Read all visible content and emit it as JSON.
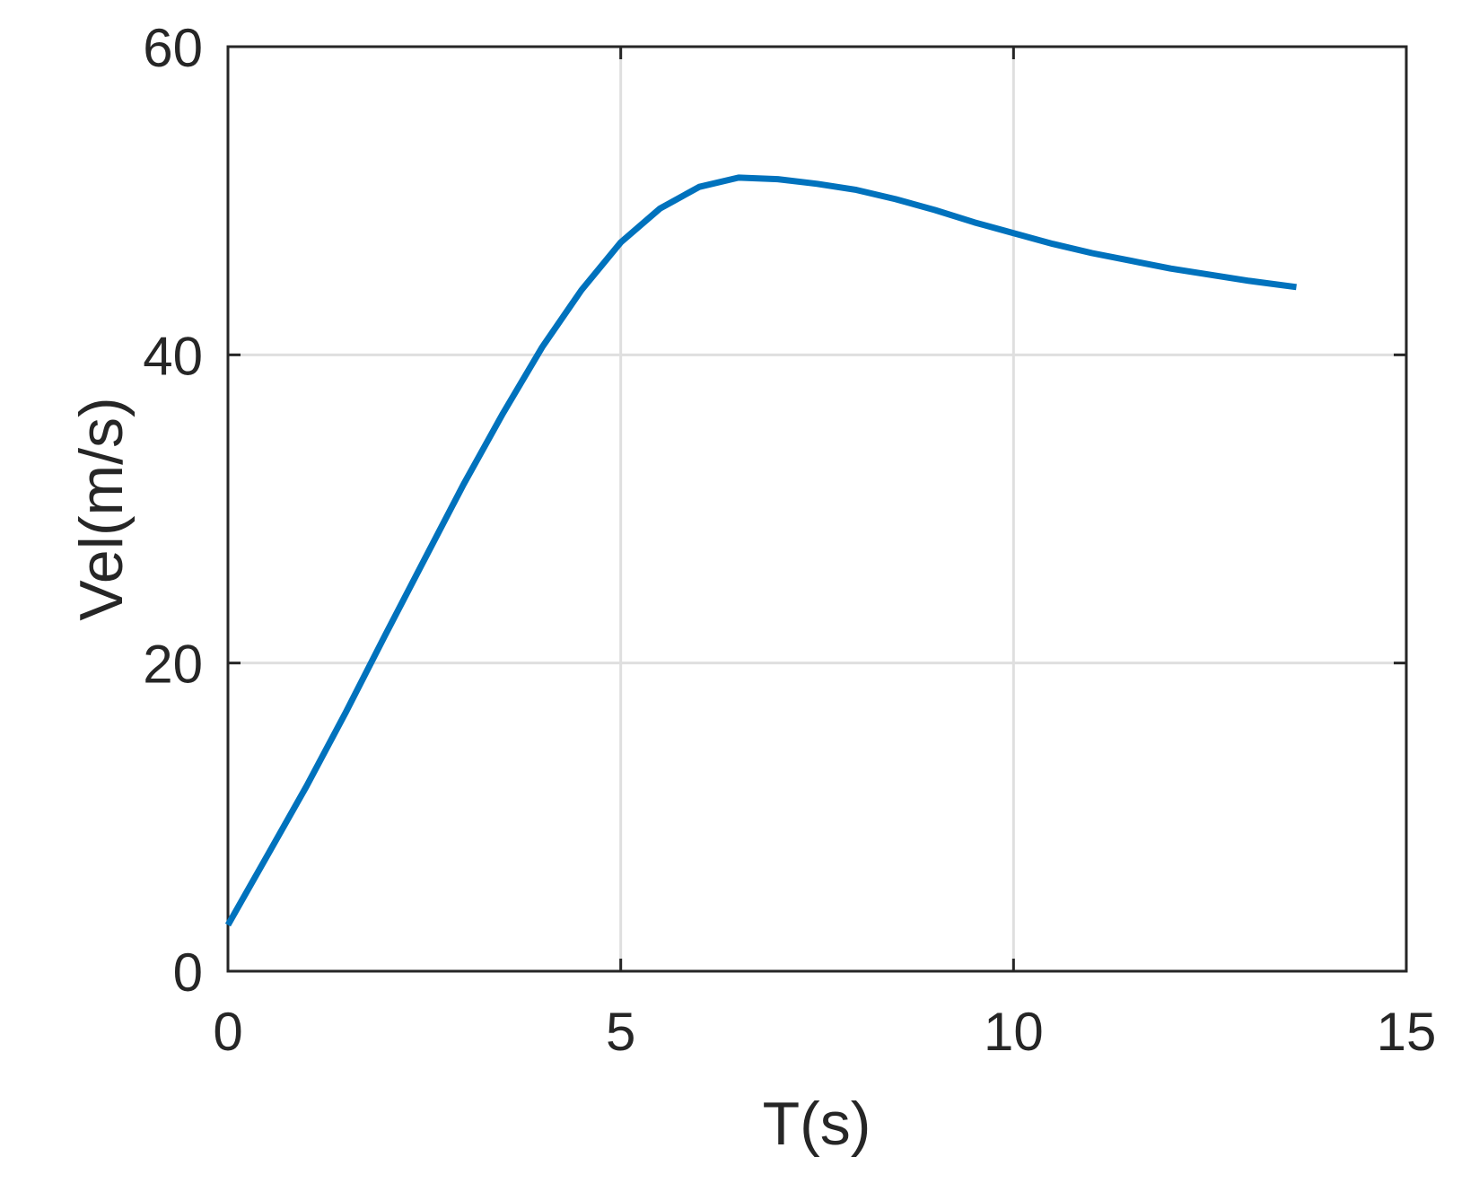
{
  "chart_data": {
    "type": "line",
    "title": "",
    "xlabel": "T(s)",
    "ylabel": "Vel(m/s)",
    "xlim": [
      0,
      15
    ],
    "ylim": [
      0,
      60
    ],
    "xticks": [
      0,
      5,
      10,
      15
    ],
    "yticks": [
      0,
      20,
      40,
      60
    ],
    "xtick_labels": [
      "0",
      "5",
      "10",
      "15"
    ],
    "ytick_labels": [
      "0",
      "20",
      "40",
      "60"
    ],
    "grid": true,
    "colors": {
      "line": "#0072BD",
      "axis": "#262626",
      "grid": "#dfdfdf"
    },
    "series": [
      {
        "x": [
          0,
          0.5,
          1,
          1.5,
          2,
          2.5,
          3,
          3.5,
          4,
          4.5,
          5,
          5.5,
          6,
          6.5,
          7,
          7.5,
          8,
          8.5,
          9,
          9.5,
          10,
          10.5,
          11,
          11.5,
          12,
          12.5,
          13,
          13.6
        ],
        "values": [
          3,
          7.5,
          12,
          16.8,
          21.8,
          26.7,
          31.6,
          36.2,
          40.5,
          44.2,
          47.3,
          49.5,
          50.9,
          51.5,
          51.4,
          51.1,
          50.7,
          50.1,
          49.4,
          48.6,
          47.9,
          47.2,
          46.6,
          46.1,
          45.6,
          45.2,
          44.8,
          44.4
        ]
      }
    ]
  }
}
